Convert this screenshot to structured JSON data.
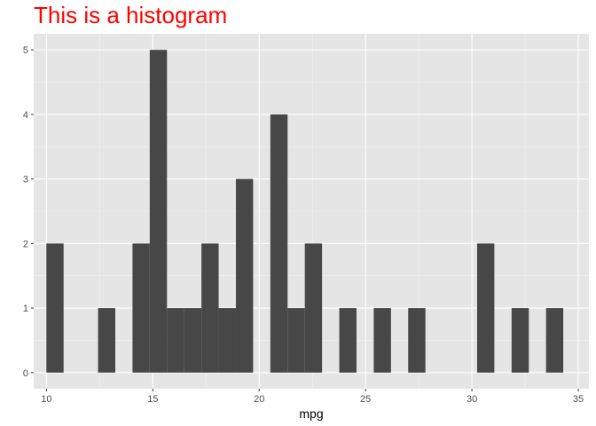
{
  "chart_data": {
    "type": "bar",
    "title": "This is a histogram",
    "xlabel": "mpg",
    "ylabel": "",
    "xlim": [
      9.4,
      35.5
    ],
    "ylim": [
      -0.25,
      5.25
    ],
    "x_ticks": [
      10,
      15,
      20,
      25,
      30,
      35
    ],
    "y_ticks": [
      0,
      1,
      2,
      3,
      4,
      5
    ],
    "grid": true,
    "bin_width": 0.81,
    "bins": [
      {
        "x": 10.4,
        "count": 2
      },
      {
        "x": 11.21,
        "count": 0
      },
      {
        "x": 12.02,
        "count": 0
      },
      {
        "x": 12.83,
        "count": 1
      },
      {
        "x": 13.64,
        "count": 0
      },
      {
        "x": 14.45,
        "count": 2
      },
      {
        "x": 15.26,
        "count": 5
      },
      {
        "x": 16.07,
        "count": 1
      },
      {
        "x": 16.88,
        "count": 1
      },
      {
        "x": 17.69,
        "count": 2
      },
      {
        "x": 18.5,
        "count": 1
      },
      {
        "x": 19.31,
        "count": 3
      },
      {
        "x": 20.12,
        "count": 0
      },
      {
        "x": 20.93,
        "count": 4
      },
      {
        "x": 21.74,
        "count": 1
      },
      {
        "x": 22.55,
        "count": 2
      },
      {
        "x": 23.36,
        "count": 0
      },
      {
        "x": 24.17,
        "count": 1
      },
      {
        "x": 24.98,
        "count": 0
      },
      {
        "x": 25.79,
        "count": 1
      },
      {
        "x": 26.6,
        "count": 0
      },
      {
        "x": 27.41,
        "count": 1
      },
      {
        "x": 28.22,
        "count": 0
      },
      {
        "x": 29.03,
        "count": 0
      },
      {
        "x": 29.84,
        "count": 0
      },
      {
        "x": 30.65,
        "count": 2
      },
      {
        "x": 31.46,
        "count": 0
      },
      {
        "x": 32.27,
        "count": 1
      },
      {
        "x": 33.08,
        "count": 0
      },
      {
        "x": 33.89,
        "count": 1
      }
    ],
    "colors": {
      "bar": "#474747",
      "panel": "#e5e5e5",
      "grid_major": "#ffffff",
      "title": "#ff0000"
    }
  }
}
